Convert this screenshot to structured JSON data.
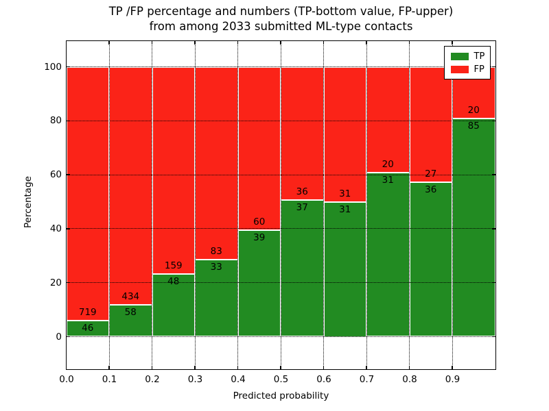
{
  "title": {
    "line1": "TP /FP percentage and numbers (TP-bottom value, FP-upper)",
    "line2": "from among 2033 submitted ML-type contacts"
  },
  "axes": {
    "xlabel": "Predicted probability",
    "ylabel": "Percentage",
    "x_ticks": [
      "0.0",
      "0.1",
      "0.2",
      "0.3",
      "0.4",
      "0.5",
      "0.6",
      "0.7",
      "0.8",
      "0.9"
    ],
    "y_ticks": [
      "0",
      "20",
      "40",
      "60",
      "80",
      "100"
    ]
  },
  "legend": {
    "items": [
      {
        "label": "TP",
        "color": "#228b22"
      },
      {
        "label": "FP",
        "color": "#fb2318"
      }
    ]
  },
  "colors": {
    "tp_green": "#228b22",
    "fp_red": "#fb2318",
    "grid": "#000000",
    "bar_edge": "#ffffff"
  },
  "chart_data": {
    "type": "bar",
    "stacked": true,
    "normalized": "each bar scaled to 100%",
    "title": "TP /FP percentage and numbers (TP-bottom value, FP-upper) from among 2033 submitted ML-type contacts",
    "xlabel": "Predicted probability",
    "ylabel": "Percentage",
    "categories": [
      "0.0-0.1",
      "0.1-0.2",
      "0.2-0.3",
      "0.3-0.4",
      "0.4-0.5",
      "0.5-0.6",
      "0.6-0.7",
      "0.7-0.8",
      "0.8-0.9",
      "0.9-1.0"
    ],
    "series": [
      {
        "name": "TP",
        "color": "#228b22",
        "values": [
          46,
          58,
          48,
          33,
          39,
          37,
          31,
          31,
          36,
          85
        ]
      },
      {
        "name": "FP",
        "color": "#fb2318",
        "values": [
          719,
          434,
          159,
          83,
          60,
          36,
          31,
          20,
          27,
          20
        ]
      }
    ],
    "total_contacts": 2033,
    "xlim": [
      0.0,
      1.0
    ],
    "ylim_shown": [
      0,
      100
    ],
    "y_tick_values": [
      0,
      20,
      40,
      60,
      80,
      100
    ],
    "grid": "dotted, on top of bars, at every x bin edge and y tick",
    "legend_position": "upper right",
    "annotation_rule": "TP count printed just below each green/red boundary, FP count just above it"
  }
}
